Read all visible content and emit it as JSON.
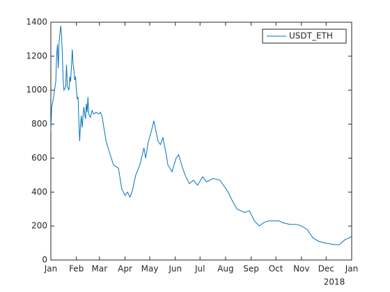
{
  "chart_data": {
    "type": "line",
    "x": [
      0,
      1,
      3,
      6,
      7,
      8,
      9,
      10,
      12,
      13,
      14,
      15,
      16,
      18,
      19,
      20,
      22,
      23,
      24,
      25,
      26,
      27,
      28,
      29,
      30,
      31,
      32,
      33,
      34,
      35,
      36,
      37,
      38,
      40,
      42,
      43,
      44,
      45,
      46,
      48,
      50,
      52,
      55,
      58,
      60,
      62,
      67,
      72,
      76,
      82,
      86,
      90,
      93,
      96,
      99,
      103,
      108,
      113,
      115,
      118,
      122,
      125,
      130,
      133,
      136,
      140,
      142,
      147,
      152,
      155,
      160,
      163,
      168,
      173,
      178,
      184,
      189,
      197,
      205,
      211,
      215,
      220,
      226,
      235,
      241,
      247,
      253,
      258,
      264,
      277,
      281,
      290,
      298,
      304,
      311,
      318,
      325,
      333,
      345,
      350,
      357,
      362,
      365
    ],
    "series": [
      {
        "name": "USDT_ETH",
        "color": "#0072bd",
        "values": [
          760,
          900,
          950,
          1050,
          1200,
          1270,
          1130,
          1280,
          1380,
          1320,
          1200,
          1050,
          1000,
          1020,
          1150,
          1020,
          1000,
          1080,
          1050,
          1140,
          1240,
          1150,
          1120,
          1060,
          1080,
          1000,
          950,
          960,
          820,
          700,
          800,
          850,
          780,
          900,
          830,
          920,
          870,
          960,
          860,
          840,
          880,
          860,
          870,
          860,
          870,
          850,
          700,
          620,
          560,
          540,
          420,
          380,
          400,
          370,
          410,
          500,
          560,
          660,
          600,
          690,
          760,
          820,
          700,
          680,
          720,
          620,
          560,
          520,
          600,
          620,
          540,
          500,
          450,
          470,
          440,
          490,
          460,
          480,
          470,
          430,
          400,
          350,
          300,
          280,
          290,
          230,
          200,
          220,
          230,
          230,
          220,
          210,
          210,
          200,
          180,
          130,
          110,
          100,
          90,
          90,
          120,
          130,
          140
        ]
      }
    ],
    "xlim": [
      0,
      365
    ],
    "xticks": [
      {
        "value": 0,
        "label": "Jan"
      },
      {
        "value": 31,
        "label": "Feb"
      },
      {
        "value": 59,
        "label": "Mar"
      },
      {
        "value": 90,
        "label": "Apr"
      },
      {
        "value": 120,
        "label": "May"
      },
      {
        "value": 151,
        "label": "Jun"
      },
      {
        "value": 181,
        "label": "Jul"
      },
      {
        "value": 212,
        "label": "Aug"
      },
      {
        "value": 243,
        "label": "Sep"
      },
      {
        "value": 273,
        "label": "Oct"
      },
      {
        "value": 304,
        "label": "Nov"
      },
      {
        "value": 334,
        "label": "Dec"
      },
      {
        "value": 365,
        "label": "Jan"
      }
    ],
    "x_year_label": "2018",
    "ylim": [
      0,
      1400
    ],
    "yticks": [
      0,
      200,
      400,
      600,
      800,
      1000,
      1200,
      1400
    ],
    "grid": false,
    "legend": "northeast"
  }
}
